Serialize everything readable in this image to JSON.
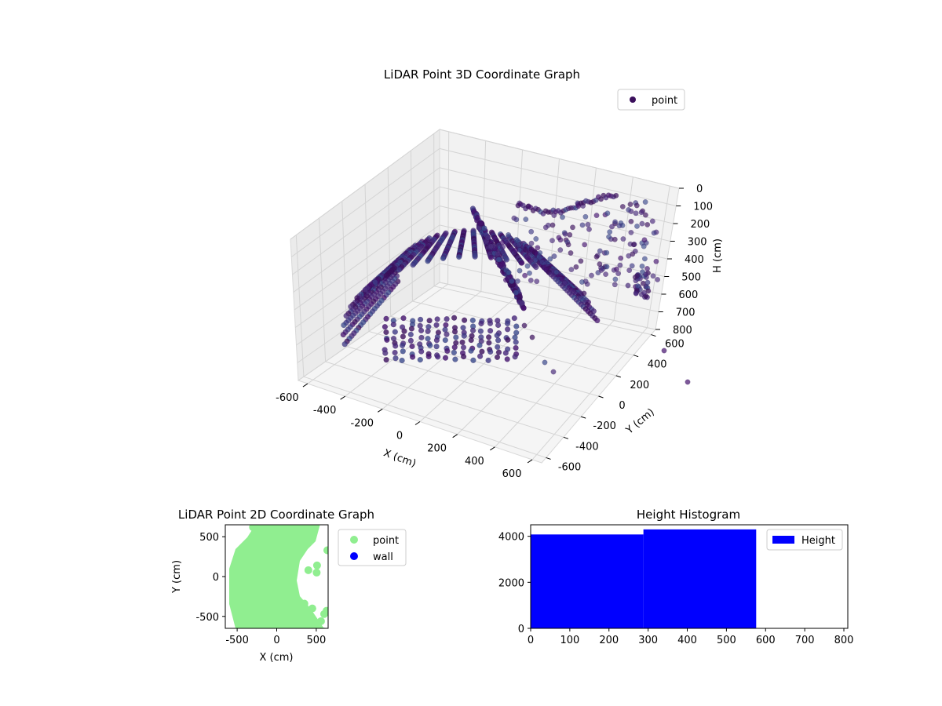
{
  "chart_data": [
    {
      "type": "scatter3d",
      "title": "LiDAR Point 3D Coordinate Graph",
      "xlabel": "X (cm)",
      "ylabel": "Y (cm)",
      "zlabel": "H (cm)",
      "xlim": [
        -650,
        650
      ],
      "ylim": [
        -650,
        650
      ],
      "zlim": [
        0,
        800
      ],
      "z_inverted": true,
      "xticks": [
        -600,
        -400,
        -200,
        0,
        200,
        400,
        600
      ],
      "yticks": [
        -600,
        -400,
        -200,
        0,
        200,
        400,
        600
      ],
      "zticks": [
        0,
        100,
        200,
        300,
        400,
        500,
        600,
        700,
        800
      ],
      "legend": {
        "position": "top-right",
        "entries": [
          {
            "label": "point",
            "color": "#3b0f5c"
          }
        ]
      },
      "colormap": "viridis",
      "grid": true,
      "series": [
        {
          "name": "point",
          "color": "#3b0f5c"
        }
      ]
    },
    {
      "type": "scatter",
      "title": "LiDAR Point 2D Coordinate Graph",
      "xlabel": "X (cm)",
      "ylabel": "Y (cm)",
      "xlim": [
        -650,
        650
      ],
      "ylim": [
        -650,
        650
      ],
      "xticks": [
        -500,
        0,
        500
      ],
      "yticks": [
        -500,
        0,
        500
      ],
      "legend": {
        "position": "outside-right",
        "entries": [
          {
            "label": "point",
            "color": "#90ee90"
          },
          {
            "label": "wall",
            "color": "#0000ff"
          }
        ]
      },
      "series": [
        {
          "name": "point",
          "color": "#90ee90"
        },
        {
          "name": "wall",
          "color": "#0000ff"
        }
      ]
    },
    {
      "type": "bar",
      "title": "Height Histogram",
      "xlabel": "",
      "ylabel": "",
      "xlim": [
        0,
        810
      ],
      "ylim": [
        0,
        4500
      ],
      "xticks": [
        0,
        100,
        200,
        300,
        400,
        500,
        600,
        700,
        800
      ],
      "yticks": [
        0,
        2000,
        4000
      ],
      "bins": [
        {
          "start": 0,
          "end": 288,
          "count": 4080
        },
        {
          "start": 288,
          "end": 576,
          "count": 4300
        }
      ],
      "color": "#0000ff",
      "legend": {
        "position": "top-right",
        "entries": [
          {
            "label": "Height",
            "color": "#0000ff"
          }
        ]
      },
      "series": [
        {
          "name": "Height",
          "color": "#0000ff"
        }
      ]
    }
  ]
}
